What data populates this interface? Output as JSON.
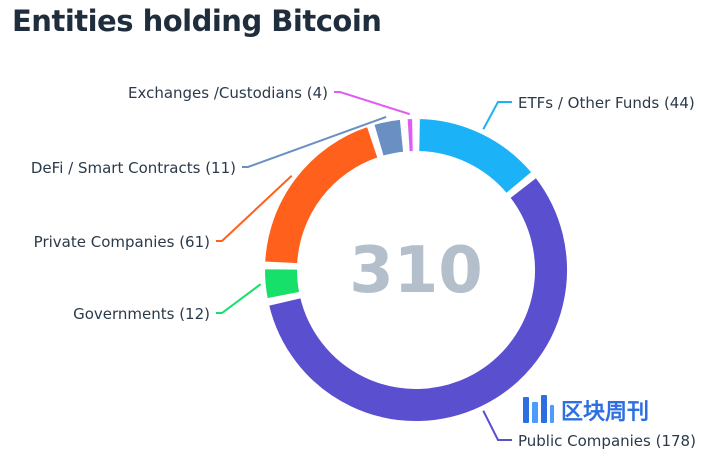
{
  "chart_data": {
    "type": "pie",
    "title": "Entities holding Bitcoin",
    "center_label": "310",
    "slices": [
      {
        "label": "ETFs / Other Funds (44)",
        "name": "ETFs / Other Funds",
        "value": 44,
        "color": "#1bb2f7"
      },
      {
        "label": "Public Companies (178)",
        "name": "Public Companies",
        "value": 178,
        "color": "#5a4fcf"
      },
      {
        "label": "Governments (12)",
        "name": "Governments",
        "value": 12,
        "color": "#16e06a"
      },
      {
        "label": "Private Companies (61)",
        "name": "Private Companies",
        "value": 61,
        "color": "#ff611c"
      },
      {
        "label": "DeFi / Smart Contracts (11)",
        "name": "DeFi / Smart Contracts",
        "value": 11,
        "color": "#6a8fc2"
      },
      {
        "label": "Exchanges /Custodians (4)",
        "name": "Exchanges /Custodians",
        "value": 4,
        "color": "#e15cf2"
      }
    ]
  },
  "watermark": {
    "text": "区块周刊",
    "logo": "bars-logo"
  }
}
